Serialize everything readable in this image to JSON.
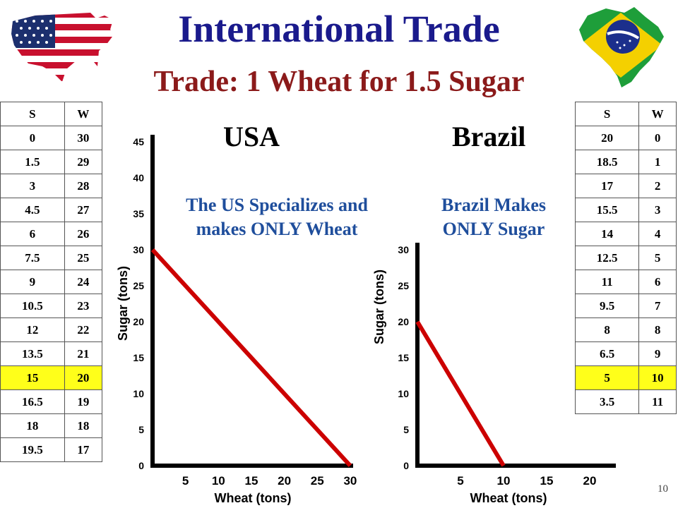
{
  "title": "International Trade",
  "subtitle": "Trade: 1 Wheat for 1.5 Sugar",
  "page_number": "10",
  "usa_table": {
    "headers": [
      "S",
      "W"
    ],
    "rows": [
      [
        "0",
        "30"
      ],
      [
        "1.5",
        "29"
      ],
      [
        "3",
        "28"
      ],
      [
        "4.5",
        "27"
      ],
      [
        "6",
        "26"
      ],
      [
        "7.5",
        "25"
      ],
      [
        "9",
        "24"
      ],
      [
        "10.5",
        "23"
      ],
      [
        "12",
        "22"
      ],
      [
        "13.5",
        "21"
      ],
      [
        "15",
        "20"
      ],
      [
        "16.5",
        "19"
      ],
      [
        "18",
        "18"
      ],
      [
        "19.5",
        "17"
      ]
    ],
    "highlight_row": 10,
    "highlight_color": "#ffff1a"
  },
  "brazil_table": {
    "headers": [
      "S",
      "W"
    ],
    "rows": [
      [
        "20",
        "0"
      ],
      [
        "18.5",
        "1"
      ],
      [
        "17",
        "2"
      ],
      [
        "15.5",
        "3"
      ],
      [
        "14",
        "4"
      ],
      [
        "12.5",
        "5"
      ],
      [
        "11",
        "6"
      ],
      [
        "9.5",
        "7"
      ],
      [
        "8",
        "8"
      ],
      [
        "6.5",
        "9"
      ],
      [
        "5",
        "10"
      ],
      [
        "3.5",
        "11"
      ]
    ],
    "highlight_row": 10,
    "highlight_color": "#ffff1a"
  },
  "chart_data": [
    {
      "type": "line",
      "title": "USA",
      "annotation": "The US Specializes and makes ONLY Wheat",
      "xlabel": "Wheat (tons)",
      "ylabel": "Sugar (tons)",
      "xlim": [
        0,
        30
      ],
      "ylim": [
        0,
        45
      ],
      "xticks": [
        5,
        10,
        15,
        20,
        25,
        30
      ],
      "yticks": [
        0,
        5,
        10,
        15,
        20,
        25,
        30,
        35,
        40,
        45
      ],
      "series": [
        {
          "x": [
            0,
            30
          ],
          "y": [
            30,
            0
          ],
          "color": "#cc0000"
        }
      ]
    },
    {
      "type": "line",
      "title": "Brazil",
      "annotation": "Brazil Makes ONLY Sugar",
      "xlabel": "Wheat (tons)",
      "ylabel": "Sugar (tons)",
      "xlim": [
        0,
        20
      ],
      "ylim": [
        0,
        30
      ],
      "xticks": [
        5,
        10,
        15,
        20
      ],
      "yticks": [
        0,
        5,
        10,
        15,
        20,
        25,
        30
      ],
      "series": [
        {
          "x": [
            0,
            10
          ],
          "y": [
            20,
            0
          ],
          "color": "#cc0000"
        }
      ]
    }
  ],
  "icons": [
    "usa-flag-map-icon",
    "brazil-flag-map-icon"
  ],
  "colors": {
    "title": "#1a1a8c",
    "subtitle": "#8b1a1a",
    "annotation": "#1f4e9c",
    "ppf_line": "#cc0000"
  }
}
